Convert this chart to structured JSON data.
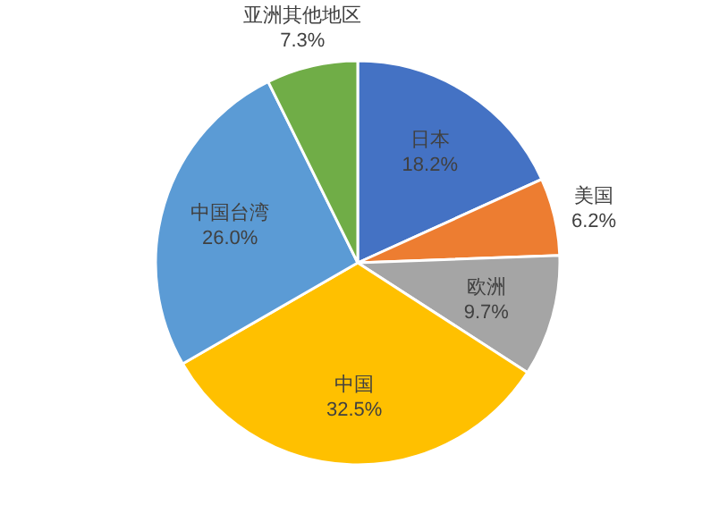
{
  "chart_data": {
    "type": "pie",
    "categories": [
      "日本",
      "美国",
      "欧洲",
      "中国",
      "中国台湾",
      "亚洲其他地区"
    ],
    "values": [
      18.2,
      6.2,
      9.7,
      32.5,
      26.0,
      7.3
    ],
    "value_labels": [
      "18.2%",
      "6.2%",
      "9.7%",
      "32.5%",
      "26.0%",
      "7.3%"
    ],
    "colors": [
      "#4472c4",
      "#ed7d31",
      "#a5a5a5",
      "#ffc000",
      "#5b9bd5",
      "#70ad47"
    ]
  }
}
